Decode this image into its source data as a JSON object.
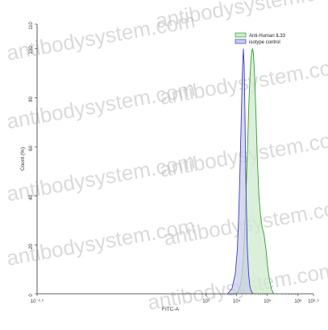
{
  "watermark": "antibodysystem.com",
  "chart_data": {
    "type": "area",
    "xlabel": "FITC-A",
    "ylabel": "Count (%)",
    "x_scale": "log",
    "xlim": [
      0.0032,
      3162278
    ],
    "ylim": [
      0,
      110
    ],
    "x_ticks": [
      {
        "value": 0.0032,
        "label": "10⁻²·⁵"
      },
      {
        "value": 1000,
        "label": "10³"
      },
      {
        "value": 10000,
        "label": "10⁴"
      },
      {
        "value": 100000,
        "label": "10⁵"
      },
      {
        "value": 1000000,
        "label": "10⁶"
      },
      {
        "value": 3162278,
        "label": "10⁶·⁵"
      }
    ],
    "y_ticks": [
      0,
      20,
      40,
      60,
      80,
      100,
      110
    ],
    "legend_position": "top-right",
    "series": [
      {
        "name": "Anti-Human IL33",
        "color": "#2e9e2e",
        "fill": "#cfe9cf",
        "x": [
          9000,
          11000,
          13000,
          15000,
          17000,
          19000,
          21000,
          23000,
          25000,
          27000,
          29000,
          31000,
          33000,
          35000,
          38000,
          42000,
          47000,
          53000,
          60000,
          68000,
          78000,
          90000,
          100000,
          115000,
          135000,
          160000
        ],
        "y": [
          0,
          1,
          3,
          8,
          18,
          32,
          48,
          63,
          78,
          88,
          95,
          99,
          100,
          98,
          90,
          75,
          55,
          40,
          32,
          27,
          24,
          18,
          12,
          6,
          2,
          0
        ]
      },
      {
        "name": "isotype control",
        "color": "#3b3bc8",
        "fill": "#c9cde6",
        "x": [
          5000,
          7000,
          9000,
          10500,
          11500,
          12500,
          13500,
          14500,
          15500,
          16500,
          17500,
          18500,
          20000,
          22000,
          24500,
          27000,
          30000,
          34000
        ],
        "y": [
          0,
          2,
          8,
          18,
          30,
          45,
          62,
          78,
          92,
          100,
          94,
          75,
          45,
          20,
          8,
          3,
          1,
          0
        ]
      }
    ]
  }
}
